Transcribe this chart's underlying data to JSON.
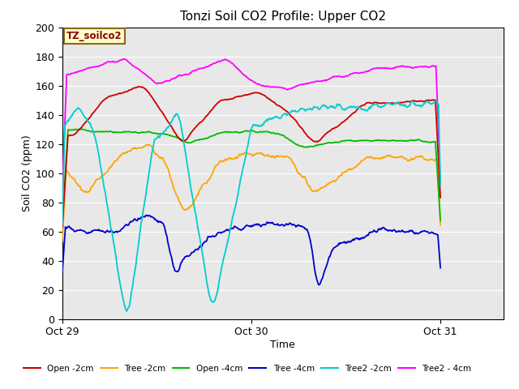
{
  "title": "Tonzi Soil CO2 Profile: Upper CO2",
  "xlabel": "Time",
  "ylabel": "Soil CO2 (ppm)",
  "ylim": [
    0,
    200
  ],
  "yticks": [
    0,
    20,
    40,
    60,
    80,
    100,
    120,
    140,
    160,
    180,
    200
  ],
  "xtick_positions": [
    0,
    24,
    48
  ],
  "xtick_labels": [
    "Oct 29",
    "Oct 30",
    "Oct 31"
  ],
  "xlim": [
    0,
    56
  ],
  "annotation_text": "TZ_soilco2",
  "annotation_color": "#8B0000",
  "annotation_bg": "#FFFFCC",
  "annotation_border": "#8B6914",
  "bg_color": "#E8E8E8",
  "line_colors": [
    "#CC0000",
    "#FFA500",
    "#00BB00",
    "#0000CC",
    "#00CCCC",
    "#FF00FF"
  ],
  "line_labels": [
    "Open -2cm",
    "Tree -2cm",
    "Open -4cm",
    "Tree -4cm",
    "Tree2 -2cm",
    "Tree2 - 4cm"
  ],
  "figsize": [
    6.4,
    4.8
  ],
  "dpi": 100
}
